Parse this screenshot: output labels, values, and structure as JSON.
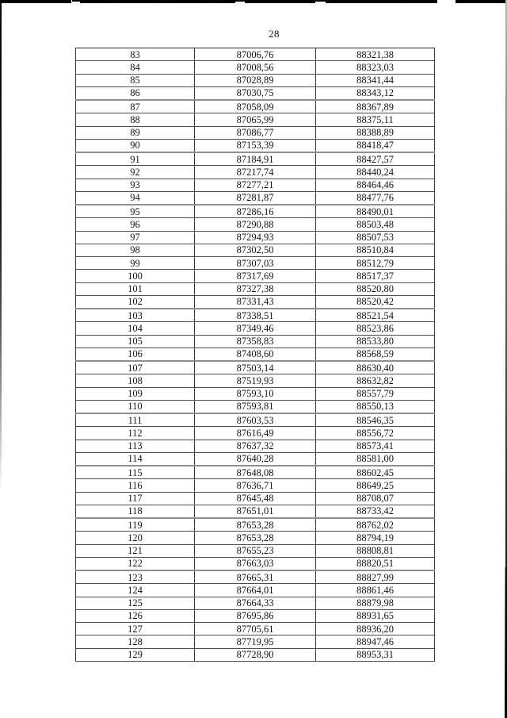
{
  "page": {
    "number": "28"
  },
  "table": {
    "rows": [
      [
        "83",
        "87006,76",
        "88321,38"
      ],
      [
        "84",
        "87008,56",
        "88323,03"
      ],
      [
        "85",
        "87028,89",
        "88341,44"
      ],
      [
        "86",
        "87030,75",
        "88343,12"
      ],
      [
        "87",
        "87058,09",
        "88367,89"
      ],
      [
        "88",
        "87065,99",
        "88375,11"
      ],
      [
        "89",
        "87086,77",
        "88388,89"
      ],
      [
        "90",
        "87153,39",
        "88418,47"
      ],
      [
        "91",
        "87184,91",
        "88427,57"
      ],
      [
        "92",
        "87217,74",
        "88440,24"
      ],
      [
        "93",
        "87277,21",
        "88464,46"
      ],
      [
        "94",
        "87281,87",
        "88477,76"
      ],
      [
        "95",
        "87286,16",
        "88490,01"
      ],
      [
        "96",
        "87290,88",
        "88503,48"
      ],
      [
        "97",
        "87294,93",
        "88507,53"
      ],
      [
        "98",
        "87302,50",
        "88510,84"
      ],
      [
        "99",
        "87307,03",
        "88512,79"
      ],
      [
        "100",
        "87317,69",
        "88517,37"
      ],
      [
        "101",
        "87327,38",
        "88520,80"
      ],
      [
        "102",
        "87331,43",
        "88520,42"
      ],
      [
        "103",
        "87338,51",
        "88521,54"
      ],
      [
        "104",
        "87349,46",
        "88523,86"
      ],
      [
        "105",
        "87358,83",
        "88533,80"
      ],
      [
        "106",
        "87408,60",
        "88568,59"
      ],
      [
        "107",
        "87503,14",
        "88630,40"
      ],
      [
        "108",
        "87519,93",
        "88632,82"
      ],
      [
        "109",
        "87593,10",
        "88557,79"
      ],
      [
        "110",
        "87593,81",
        "88550,13"
      ],
      [
        "111",
        "87603,53",
        "88546,35"
      ],
      [
        "112",
        "87616,49",
        "88556,72"
      ],
      [
        "113",
        "87637,32",
        "88573,41"
      ],
      [
        "114",
        "87640,28",
        "88581,00"
      ],
      [
        "115",
        "87648,08",
        "88602,45"
      ],
      [
        "116",
        "87636,71",
        "88649,25"
      ],
      [
        "117",
        "87645,48",
        "88708,07"
      ],
      [
        "118",
        "87651,01",
        "88733,42"
      ],
      [
        "119",
        "87653,28",
        "88762,02"
      ],
      [
        "120",
        "87653,28",
        "88794,19"
      ],
      [
        "121",
        "87655,23",
        "88808,81"
      ],
      [
        "122",
        "87663,03",
        "88820,51"
      ],
      [
        "123",
        "87665,31",
        "88827,99"
      ],
      [
        "124",
        "87664,01",
        "88861,46"
      ],
      [
        "125",
        "87664,33",
        "88879,98"
      ],
      [
        "126",
        "87695,86",
        "88931,65"
      ],
      [
        "127",
        "87705,61",
        "88936,20"
      ],
      [
        "128",
        "87719,95",
        "88947,46"
      ],
      [
        "129",
        "87728,90",
        "88953,31"
      ]
    ]
  }
}
